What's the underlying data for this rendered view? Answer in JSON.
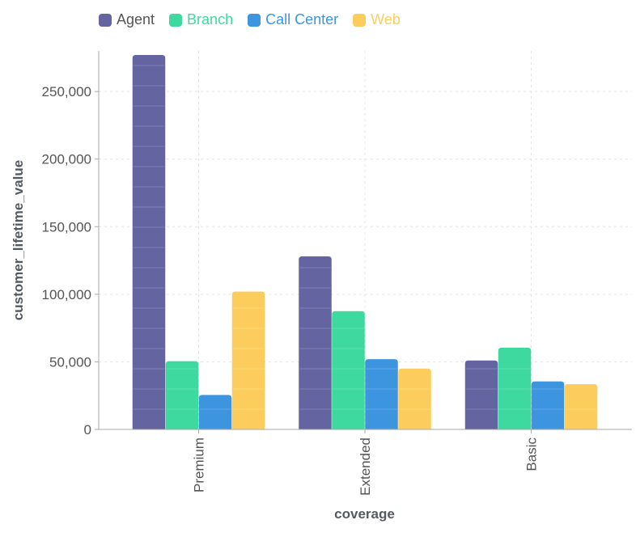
{
  "chart_data": {
    "type": "bar",
    "categories": [
      "Premium",
      "Extended",
      "Basic"
    ],
    "series": [
      {
        "name": "Agent",
        "color": "#6464a0",
        "values": [
          277000,
          128000,
          51000
        ]
      },
      {
        "name": "Branch",
        "color": "#3dd99e",
        "values": [
          50500,
          87500,
          60500
        ]
      },
      {
        "name": "Call Center",
        "color": "#3c95de",
        "values": [
          25500,
          52000,
          35500
        ]
      },
      {
        "name": "Web",
        "color": "#fccd5c",
        "values": [
          102000,
          45000,
          33500
        ]
      }
    ],
    "yticks": [
      0,
      50000,
      100000,
      150000,
      200000,
      250000
    ],
    "ytick_labels": [
      "0",
      "50,000",
      "100,000",
      "150,000",
      "200,000",
      "250,000"
    ],
    "ylim": [
      0,
      280000
    ],
    "xlabel": "coverage",
    "ylabel": "customer_lifetime_value",
    "grid": true,
    "legend_position": "top-left"
  }
}
